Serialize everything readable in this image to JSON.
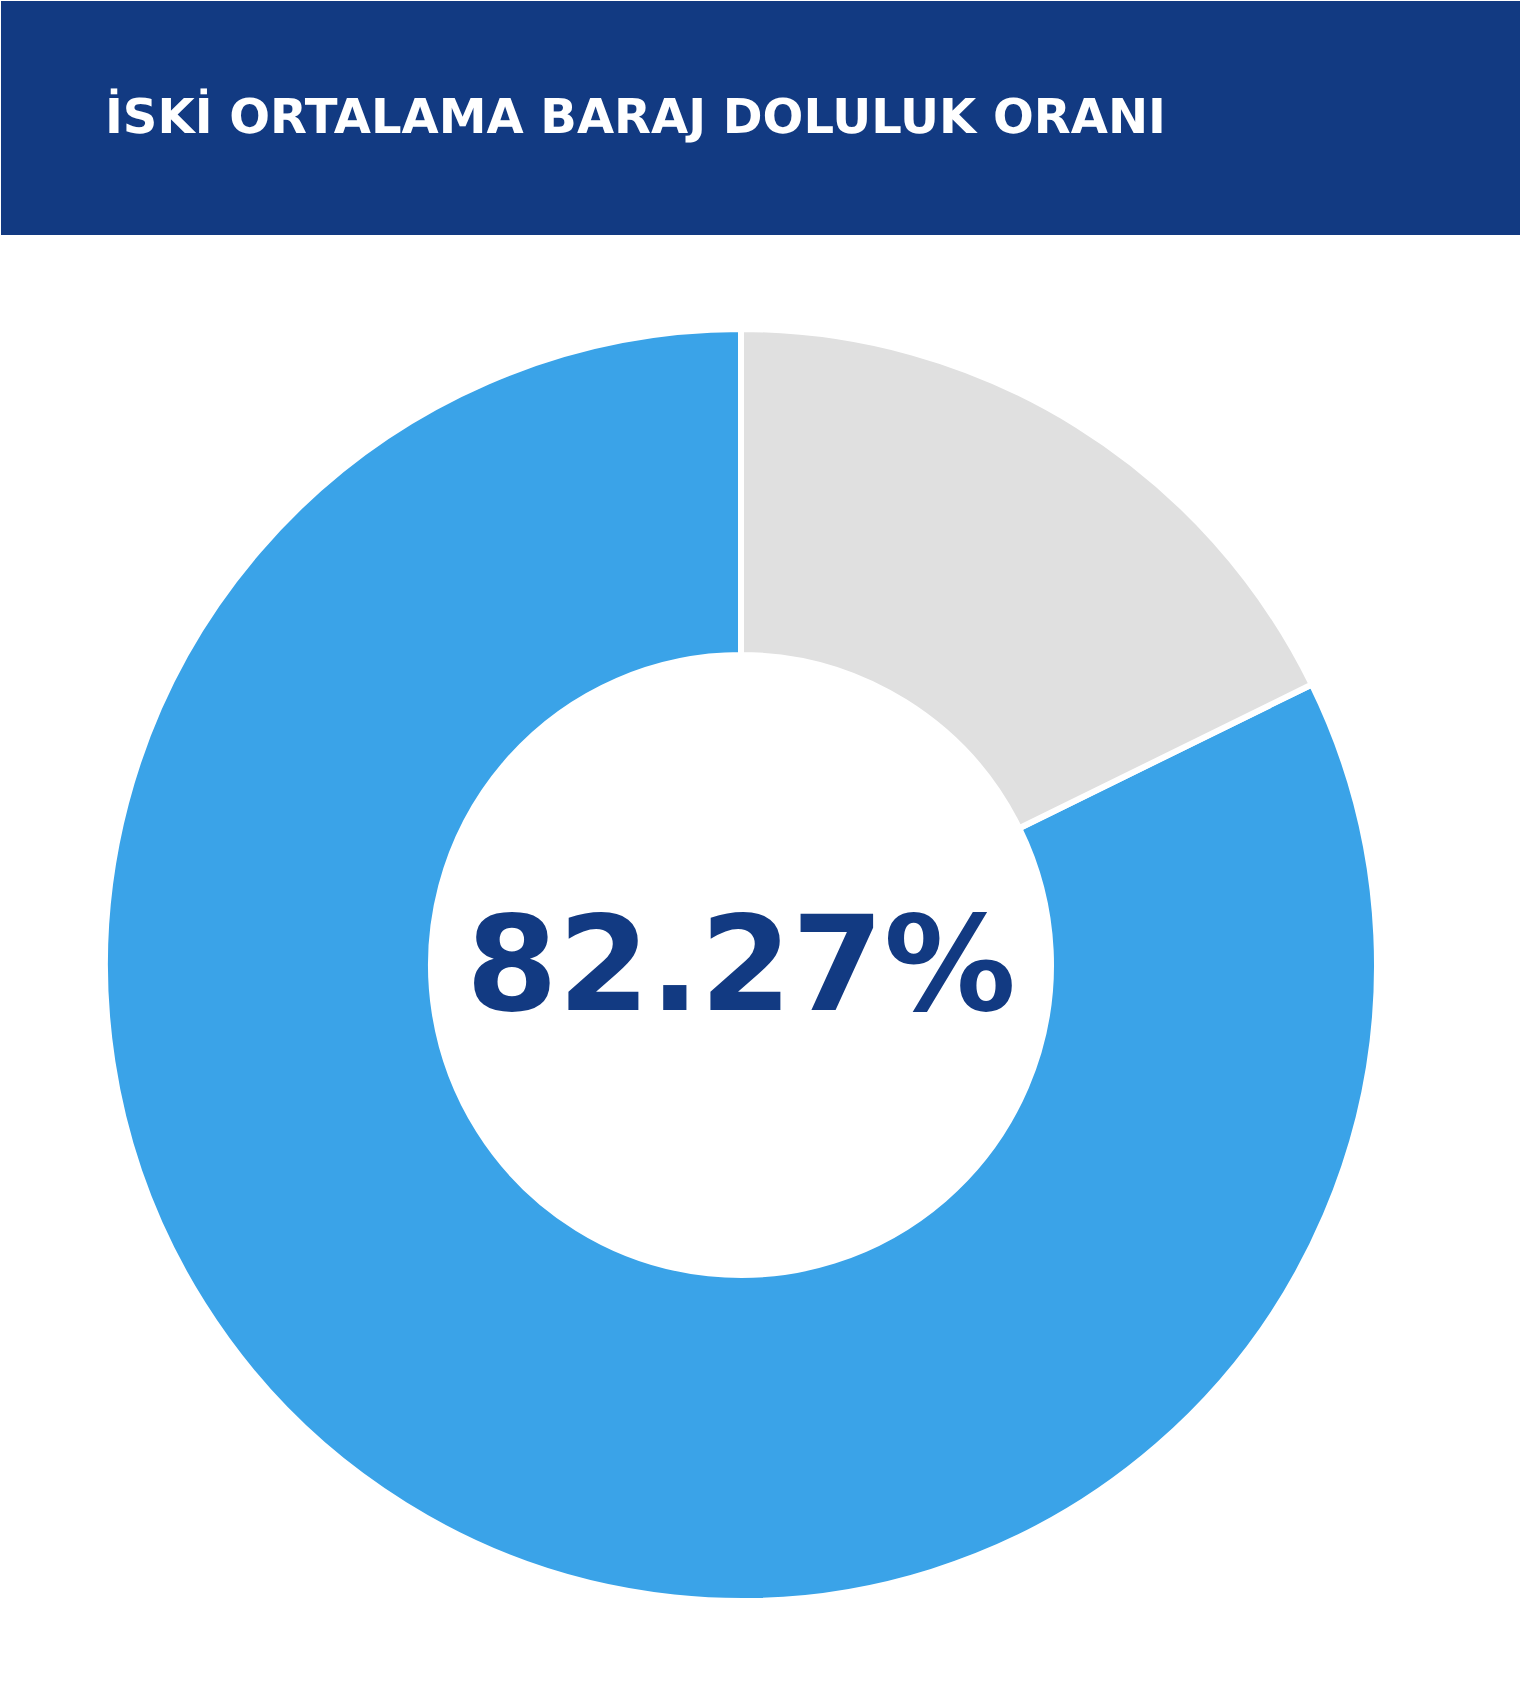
{
  "chart_data": {
    "type": "donut",
    "title": "İSKİ ORTALAMA BARAJ DOLULUK ORANI",
    "categories": [
      null,
      null
    ],
    "values": [
      82.27,
      17.73
    ],
    "colors": [
      "#3aa3e8",
      "#e0e0e0"
    ],
    "annotations": [
      "82.27%"
    ]
  }
}
